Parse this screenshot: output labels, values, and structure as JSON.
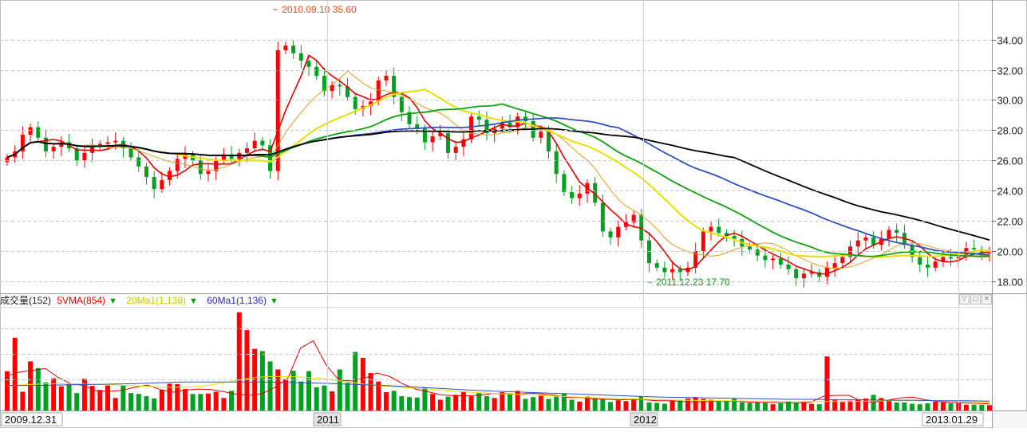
{
  "colors": {
    "up": "#ff0000",
    "down": "#00a020",
    "ma_red": "#e00000",
    "ma_orange": "#e0a020",
    "ma_yellow": "#e6e000",
    "ma_green": "#10a010",
    "ma_blue": "#3050c0",
    "ma_black": "#000000",
    "grid": "#c8c8c8"
  },
  "volume_legend": {
    "title": "成交量(152)",
    "ma5": "5VMA(854)",
    "ma20": "20Ma1(1,138)",
    "ma60": "60Ma1(1,136)",
    "marker": "▼"
  },
  "pane_buttons": [
    "▽",
    "▢",
    "✕"
  ],
  "chart_data": [
    {
      "type": "candlestick",
      "x_start": "2009.12.31",
      "x_end": "2013.01.29",
      "x_tick_labels": [
        "2009.12.31",
        "2011",
        "2012",
        "2013.01.29"
      ],
      "y_ticks": [
        "18.00",
        "20.00",
        "22.00",
        "24.00",
        "26.00",
        "28.00",
        "30.00",
        "32.00",
        "34.00"
      ],
      "ylim": [
        17.2,
        36.2
      ],
      "grid": true,
      "annotations": [
        {
          "text": "2010.09.10  35.60",
          "date": "2010.09.10",
          "value": 35.6
        },
        {
          "text": "2011.12.23  17.70",
          "date": "2011.12.23",
          "value": 17.7
        }
      ],
      "closes": [
        26.2,
        26.6,
        27.7,
        28.2,
        27.5,
        26.6,
        26.9,
        27.2,
        26.8,
        26.0,
        26.5,
        26.9,
        27.1,
        27.2,
        27.3,
        26.8,
        26.2,
        25.6,
        24.9,
        24.1,
        24.7,
        25.3,
        26.1,
        26.4,
        26.0,
        25.1,
        25.3,
        26.0,
        26.4,
        26.1,
        26.5,
        26.8,
        27.3,
        27.0,
        25.3,
        33.3,
        33.6,
        33.1,
        32.6,
        32.2,
        31.6,
        30.6,
        31.0,
        30.9,
        30.2,
        29.4,
        29.6,
        29.9,
        31.3,
        31.6,
        30.2,
        29.2,
        28.4,
        28.1,
        27.2,
        27.6,
        27.8,
        26.5,
        26.9,
        27.4,
        28.9,
        28.7,
        27.8,
        28.1,
        28.5,
        28.2,
        28.9,
        28.6,
        27.5,
        27.9,
        26.6,
        25.1,
        23.9,
        23.5,
        23.8,
        24.5,
        23.2,
        21.3,
        20.9,
        21.6,
        21.9,
        22.4,
        20.7,
        19.2,
        18.9,
        18.6,
        18.8,
        18.6,
        18.9,
        20.0,
        21.3,
        21.6,
        21.2,
        21.0,
        20.8,
        20.3,
        20.1,
        19.7,
        19.4,
        19.5,
        19.1,
        18.8,
        18.2,
        18.5,
        18.6,
        18.3,
        18.9,
        19.2,
        19.6,
        20.3,
        20.7,
        20.9,
        20.4,
        20.8,
        21.4,
        21.2,
        20.4,
        19.6,
        19.1,
        18.9,
        19.3,
        19.6,
        19.5,
        19.6,
        20.2,
        20.1,
        19.9,
        19.9
      ],
      "volumes": [
        880,
        1630,
        420,
        1100,
        950,
        630,
        720,
        540,
        600,
        390,
        710,
        550,
        460,
        560,
        280,
        560,
        390,
        370,
        320,
        270,
        460,
        600,
        590,
        480,
        370,
        370,
        380,
        420,
        280,
        440,
        2200,
        1800,
        1380,
        1330,
        1100,
        920,
        700,
        890,
        650,
        880,
        520,
        560,
        430,
        920,
        620,
        1310,
        1180,
        840,
        650,
        410,
        440,
        320,
        300,
        290,
        520,
        370,
        240,
        310,
        350,
        430,
        320,
        390,
        320,
        280,
        410,
        380,
        440,
        260,
        300,
        330,
        260,
        310,
        380,
        240,
        200,
        310,
        280,
        260,
        190,
        230,
        210,
        260,
        320,
        180,
        170,
        150,
        230,
        220,
        270,
        300,
        260,
        240,
        200,
        220,
        260,
        180,
        170,
        180,
        170,
        140,
        160,
        200,
        180,
        190,
        150,
        140,
        1210,
        230,
        190,
        220,
        250,
        270,
        350,
        280,
        240,
        180,
        180,
        150,
        140,
        160,
        200,
        180,
        160,
        170,
        130,
        130,
        130,
        120
      ],
      "series": [
        {
          "name": "5VMA",
          "values": [
            780,
            860,
            900,
            940,
            740,
            600,
            560,
            440,
            430,
            450,
            520,
            570,
            470,
            410,
            460,
            480,
            470,
            420,
            360,
            340,
            380,
            520,
            720,
            1400,
            1560,
            1020,
            680,
            660,
            720,
            840,
            760,
            600,
            480,
            420,
            350,
            330,
            330,
            340,
            380,
            380,
            360,
            390,
            370,
            340,
            290,
            290,
            260,
            250,
            240,
            250,
            240,
            220,
            220,
            200,
            190,
            200,
            210,
            210,
            190,
            180,
            180,
            170,
            170,
            190,
            320,
            340,
            340,
            200,
            190,
            230,
            280,
            300,
            240,
            200,
            180,
            170,
            160,
            150
          ]
        },
        {
          "name": "20Ma1",
          "values": [
            550,
            580,
            600,
            600,
            590,
            580,
            560,
            540,
            520,
            520,
            560,
            640,
            720,
            760,
            760,
            740,
            700,
            640,
            580,
            540,
            510,
            480,
            440,
            410,
            390,
            370,
            350,
            330,
            310,
            290,
            270,
            260,
            250,
            240,
            230,
            220,
            220,
            210,
            210,
            200,
            200,
            200,
            200,
            210,
            220,
            220,
            220,
            210,
            200,
            190
          ]
        },
        {
          "name": "60Ma1",
          "values": [
            560,
            560,
            570,
            580,
            590,
            600,
            620,
            640,
            640,
            640,
            640,
            630,
            620,
            600,
            580,
            560,
            530,
            500,
            470,
            440,
            420,
            400,
            380,
            360,
            340,
            320,
            300,
            290,
            280,
            270,
            260,
            250,
            250,
            240,
            240,
            230,
            230,
            220,
            220,
            210
          ]
        }
      ]
    }
  ]
}
